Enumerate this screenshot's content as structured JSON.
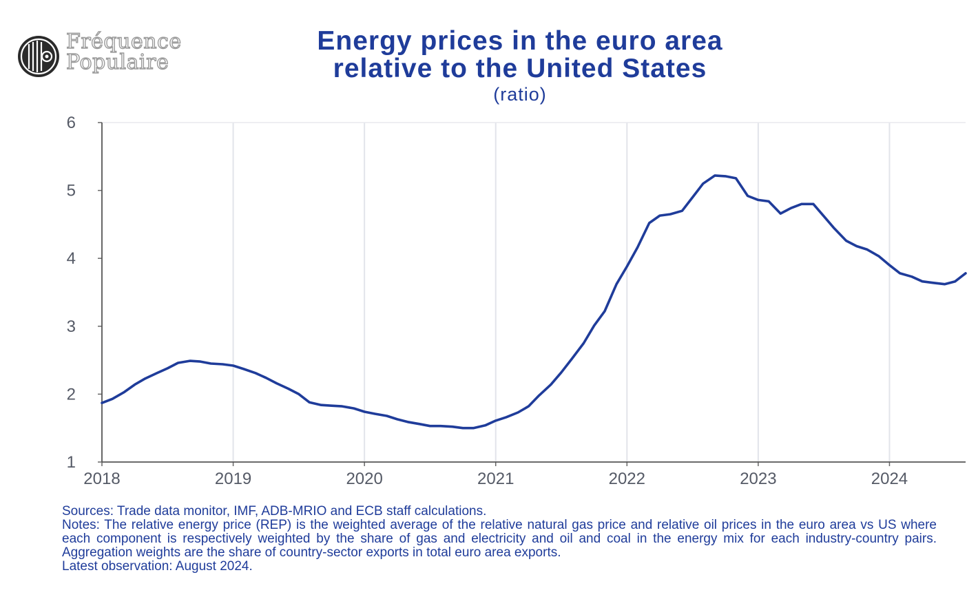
{
  "logo": {
    "line1": "Fréquence",
    "line2": "Populaire",
    "icon": "concentric-disc-logo-icon"
  },
  "chart_data": {
    "type": "line",
    "title_line1": "Energy prices in the euro area",
    "title_line2": "relative to the United States",
    "subtitle": "(ratio)",
    "xlabel": "",
    "ylabel": "",
    "xlim": [
      2018.0,
      2024.58
    ],
    "ylim": [
      1,
      6
    ],
    "x_ticks": [
      "2018",
      "2019",
      "2020",
      "2021",
      "2022",
      "2023",
      "2024"
    ],
    "y_ticks": [
      "1",
      "2",
      "3",
      "4",
      "5",
      "6"
    ],
    "grid": "vertical",
    "legend": "none",
    "line_color": "#1f3c9a",
    "series": [
      {
        "x": [
          2018.0,
          2018.08,
          2018.17,
          2018.25,
          2018.33,
          2018.42,
          2018.5,
          2018.58,
          2018.67,
          2018.75,
          2018.83,
          2018.92,
          2019.0,
          2019.08,
          2019.17,
          2019.25,
          2019.33,
          2019.42,
          2019.5,
          2019.58,
          2019.67,
          2019.75,
          2019.83,
          2019.92,
          2020.0,
          2020.08,
          2020.17,
          2020.25,
          2020.33,
          2020.42,
          2020.5,
          2020.58,
          2020.67,
          2020.75,
          2020.83,
          2020.92,
          2021.0,
          2021.08,
          2021.17,
          2021.25,
          2021.33,
          2021.42,
          2021.5,
          2021.58,
          2021.67,
          2021.75,
          2021.83,
          2021.92,
          2022.0,
          2022.08,
          2022.17,
          2022.25,
          2022.33,
          2022.42,
          2022.5,
          2022.58,
          2022.67,
          2022.75,
          2022.83,
          2022.92,
          2023.0,
          2023.08,
          2023.17,
          2023.25,
          2023.33,
          2023.42,
          2023.5,
          2023.58,
          2023.67,
          2023.75,
          2023.83,
          2023.92,
          2024.0,
          2024.08,
          2024.17,
          2024.25,
          2024.33,
          2024.42,
          2024.5,
          2024.58
        ],
        "values": [
          1.87,
          1.93,
          2.03,
          2.14,
          2.23,
          2.31,
          2.38,
          2.46,
          2.49,
          2.48,
          2.45,
          2.44,
          2.42,
          2.37,
          2.31,
          2.24,
          2.16,
          2.08,
          2.0,
          1.88,
          1.84,
          1.83,
          1.82,
          1.79,
          1.74,
          1.71,
          1.68,
          1.63,
          1.59,
          1.56,
          1.53,
          1.53,
          1.52,
          1.5,
          1.5,
          1.54,
          1.61,
          1.66,
          1.73,
          1.82,
          1.98,
          2.14,
          2.32,
          2.52,
          2.75,
          3.01,
          3.22,
          3.62,
          3.88,
          4.16,
          4.52,
          4.63,
          4.65,
          4.7,
          4.9,
          5.1,
          5.22,
          5.21,
          5.18,
          4.92,
          4.86,
          4.84,
          4.66,
          4.74,
          4.8,
          4.8,
          4.62,
          4.44,
          4.26,
          4.18,
          4.13,
          4.03,
          3.9,
          3.78,
          3.73,
          3.66,
          3.64,
          3.62,
          3.66,
          3.78
        ]
      }
    ]
  },
  "notes": {
    "sources": "Sources: Trade data monitor, IMF, ADB-MRIO and ECB staff calculations.",
    "body": "Notes: The relative energy price (REP) is the weighted average of the relative natural gas price and relative oil prices in the euro area vs US where each component is respectively weighted by the share of gas and electricity and oil and coal in the energy mix for each industry-country pairs. Aggregation weights are the share of country-sector exports in total euro area exports.",
    "latest": "Latest observation: August 2024."
  }
}
